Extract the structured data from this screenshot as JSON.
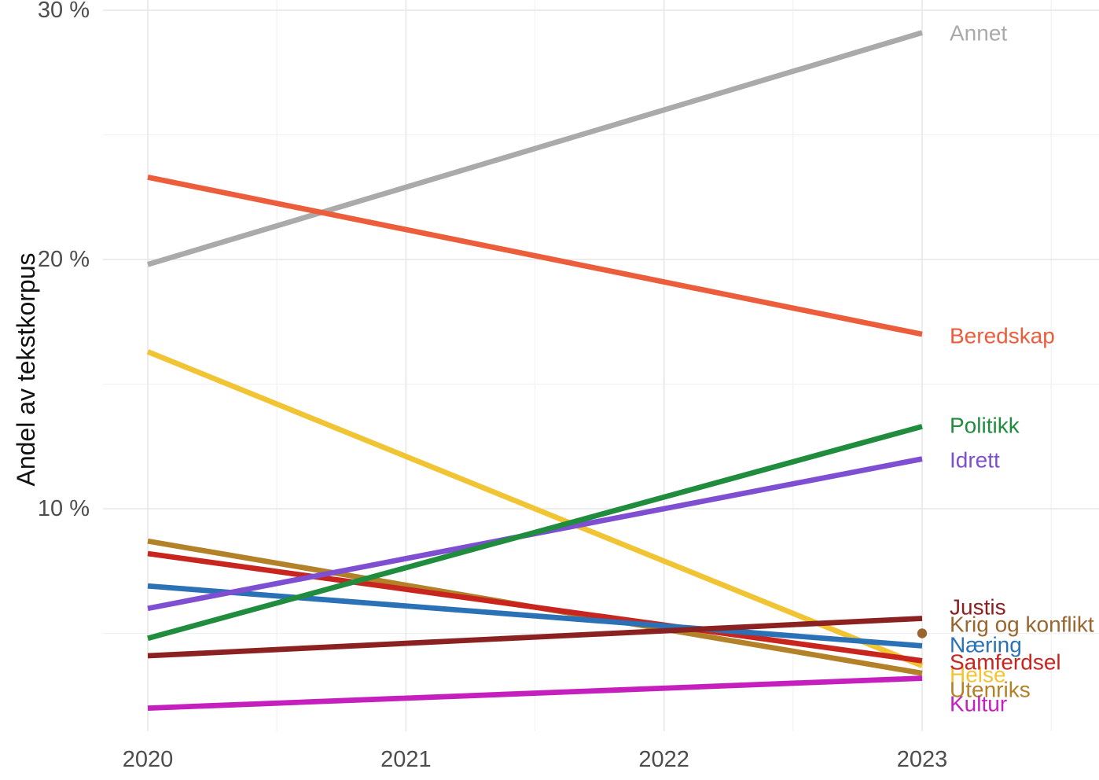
{
  "chart_data": {
    "type": "line",
    "title": "",
    "xlabel": "",
    "ylabel": "Andel av tekstkorpus",
    "x": [
      2020,
      2023
    ],
    "x_tick_labels": [
      "2020",
      "2021",
      "2022",
      "2023"
    ],
    "x_tick_values": [
      2020,
      2021,
      2022,
      2023
    ],
    "y_tick_labels": [
      "30 %",
      "20 %",
      "10 %"
    ],
    "y_tick_values": [
      30,
      20,
      10
    ],
    "y_minor_values": [
      25,
      15,
      5
    ],
    "x_minor_values": [
      2020.5,
      2021.5,
      2022.5,
      2023.5
    ],
    "ylim": [
      0.4,
      30.4
    ],
    "grid": "on",
    "legend_position": "right-direct-labels",
    "unit": "percent of text corpus",
    "series": [
      {
        "name": "Annet",
        "color": "#AAAAAA",
        "values": [
          19.8,
          29.1
        ]
      },
      {
        "name": "Beredskap",
        "color": "#EC5D3B",
        "values": [
          23.3,
          17.0
        ]
      },
      {
        "name": "Helse",
        "color": "#F0C433",
        "values": [
          16.3,
          3.7
        ]
      },
      {
        "name": "Utenriks",
        "color": "#B28128",
        "values": [
          8.7,
          3.4
        ]
      },
      {
        "name": "Samferdsel",
        "color": "#C8251F",
        "values": [
          8.2,
          3.9
        ]
      },
      {
        "name": "Næring",
        "color": "#2A72B5",
        "values": [
          6.9,
          4.5
        ]
      },
      {
        "name": "Idrett",
        "color": "#7E4FD0",
        "values": [
          6.0,
          12.0
        ]
      },
      {
        "name": "Politikk",
        "color": "#1F8C3E",
        "values": [
          4.8,
          13.3
        ]
      },
      {
        "name": "Justis",
        "color": "#8B2121",
        "values": [
          4.1,
          5.6
        ]
      },
      {
        "name": "Kultur",
        "color": "#C51FBE",
        "values": [
          2.0,
          3.2
        ]
      }
    ],
    "point_series": [
      {
        "name": "Krig og konflikt",
        "color": "#99662E",
        "x": 2023,
        "value": 5.0
      }
    ],
    "colors": {
      "grid_major": "#E6E6E6",
      "grid_minor": "#F1F1F1",
      "axis_text": "#4D4D4D",
      "axis_title": "#111111"
    }
  }
}
